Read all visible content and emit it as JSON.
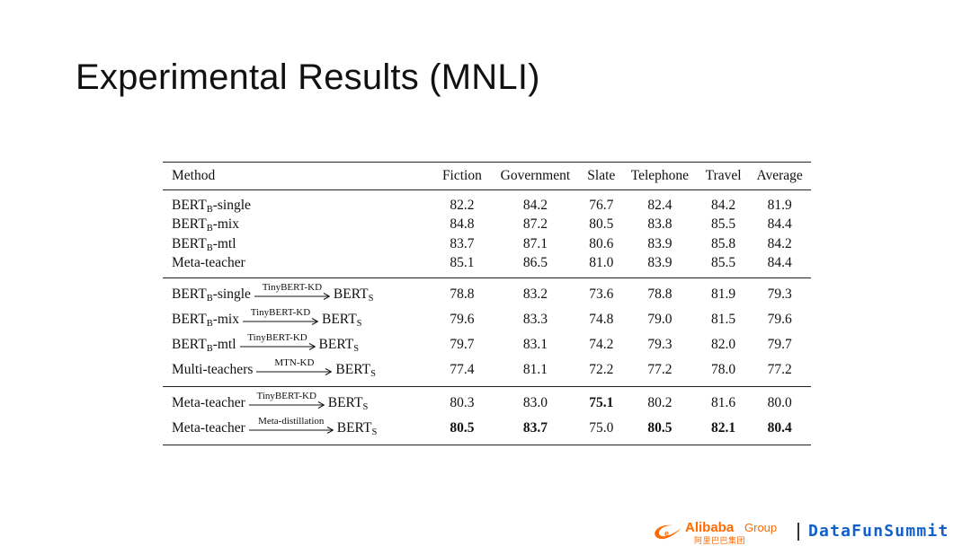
{
  "title": "Experimental Results (MNLI)",
  "table": {
    "headers": [
      "Method",
      "Fiction",
      "Government",
      "Slate",
      "Telephone",
      "Travel",
      "Average"
    ],
    "group1": [
      {
        "teacher": "BERT",
        "sub": "B",
        "suffix": "-single",
        "values": [
          "82.2",
          "84.2",
          "76.7",
          "82.4",
          "84.2",
          "81.9"
        ]
      },
      {
        "teacher": "BERT",
        "sub": "B",
        "suffix": "-mix",
        "values": [
          "84.8",
          "87.2",
          "80.5",
          "83.8",
          "85.5",
          "84.4"
        ]
      },
      {
        "teacher": "BERT",
        "sub": "B",
        "suffix": "-mtl",
        "values": [
          "83.7",
          "87.1",
          "80.6",
          "83.9",
          "85.8",
          "84.2"
        ]
      },
      {
        "teacher": "Meta-teacher",
        "sub": "",
        "suffix": "",
        "values": [
          "85.1",
          "86.5",
          "81.0",
          "83.9",
          "85.5",
          "84.4"
        ]
      }
    ],
    "group2": [
      {
        "teacher": "BERT",
        "sub": "B",
        "suffix": "-single",
        "arrow_label": "TinyBERT-KD",
        "student": "BERT",
        "student_sub": "S",
        "values": [
          "78.8",
          "83.2",
          "73.6",
          "78.8",
          "81.9",
          "79.3"
        ]
      },
      {
        "teacher": "BERT",
        "sub": "B",
        "suffix": "-mix",
        "arrow_label": "TinyBERT-KD",
        "student": "BERT",
        "student_sub": "S",
        "values": [
          "79.6",
          "83.3",
          "74.8",
          "79.0",
          "81.5",
          "79.6"
        ]
      },
      {
        "teacher": "BERT",
        "sub": "B",
        "suffix": "-mtl",
        "arrow_label": "TinyBERT-KD",
        "student": "BERT",
        "student_sub": "S",
        "values": [
          "79.7",
          "83.1",
          "74.2",
          "79.3",
          "82.0",
          "79.7"
        ]
      },
      {
        "teacher": "Multi-teachers",
        "sub": "",
        "suffix": "",
        "arrow_label": "MTN-KD",
        "student": "BERT",
        "student_sub": "S",
        "values": [
          "77.4",
          "81.1",
          "72.2",
          "77.2",
          "78.0",
          "77.2"
        ]
      }
    ],
    "group3": [
      {
        "teacher": "Meta-teacher",
        "sub": "",
        "suffix": "",
        "arrow_label": "TinyBERT-KD",
        "student": "BERT",
        "student_sub": "S",
        "values": [
          "80.3",
          "83.0",
          "75.1",
          "80.2",
          "81.6",
          "80.0"
        ]
      },
      {
        "teacher": "Meta-teacher",
        "sub": "",
        "suffix": "",
        "arrow_label": "Meta-distillation",
        "student": "BERT",
        "student_sub": "S",
        "values": [
          "80.5",
          "83.7",
          "75.0",
          "80.5",
          "82.1",
          "80.4"
        ]
      }
    ],
    "bold_cells": [
      {
        "group": "group3",
        "row": 0,
        "col": 2
      },
      {
        "group": "group3",
        "row": 1,
        "col": 0
      },
      {
        "group": "group3",
        "row": 1,
        "col": 1
      },
      {
        "group": "group3",
        "row": 1,
        "col": 3
      },
      {
        "group": "group3",
        "row": 1,
        "col": 4
      },
      {
        "group": "group3",
        "row": 1,
        "col": 5
      }
    ]
  },
  "footer": {
    "alibaba_word": "Alibaba",
    "alibaba_group": "Group",
    "alibaba_cn": "阿里巴巴集团",
    "datafun": "DataFunSummit",
    "brand_orange": "#ff6a00",
    "brand_blue": "#1460c8",
    "logo_icon": "alibaba-logo-icon"
  }
}
